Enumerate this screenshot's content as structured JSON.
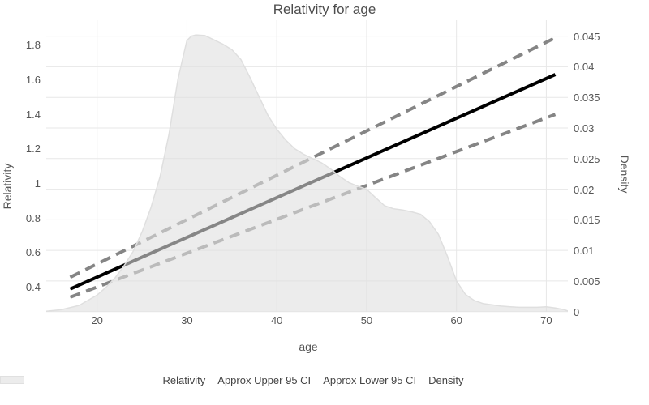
{
  "chart_data": {
    "type": "line",
    "title": "Relativity for age",
    "xlabel": "age",
    "ylabel_left": "Relativity",
    "ylabel_right": "Density",
    "grid": true,
    "legend_position": "bottom",
    "x_ticks": [
      "20",
      "30",
      "40",
      "50",
      "60",
      "70"
    ],
    "y_left_ticks": [
      "0.4",
      "0.6",
      "0.8",
      "1",
      "1.2",
      "1.4",
      "1.6",
      "1.8"
    ],
    "y_right_ticks": [
      "0",
      "0.005",
      "0.01",
      "0.015",
      "0.02",
      "0.025",
      "0.03",
      "0.035",
      "0.04",
      "0.045"
    ],
    "x_range": [
      14.34,
      72.4
    ],
    "y_left_range": [
      0.255,
      1.941
    ],
    "y_right_range": [
      0,
      0.0476
    ],
    "series": [
      {
        "name": "Relativity",
        "kind": "line",
        "style": "solid",
        "axis": "left",
        "color": "#000000",
        "width": 4,
        "points": [
          [
            17,
            0.387
          ],
          [
            71,
            1.627
          ]
        ]
      },
      {
        "name": "Approx Upper 95 CI",
        "kind": "line",
        "style": "dashed",
        "axis": "left",
        "color": "#858585",
        "width": 4,
        "points": [
          [
            17,
            0.455
          ],
          [
            71,
            1.84
          ]
        ]
      },
      {
        "name": "Approx Lower 95 CI",
        "kind": "line",
        "style": "dashed",
        "axis": "left",
        "color": "#858585",
        "width": 4,
        "points": [
          [
            17,
            0.34
          ],
          [
            71,
            1.397
          ]
        ]
      },
      {
        "name": "Density",
        "kind": "area",
        "axis": "right",
        "fill": "rgba(224,224,224,0.6)",
        "stroke": "#dfdfdf",
        "points": [
          [
            14.3,
            5e-05
          ],
          [
            16,
            0.0003
          ],
          [
            18,
            0.001
          ],
          [
            20,
            0.0027
          ],
          [
            21,
            0.004
          ],
          [
            22,
            0.0055
          ],
          [
            23,
            0.0075
          ],
          [
            24,
            0.0098
          ],
          [
            25,
            0.013
          ],
          [
            26,
            0.017
          ],
          [
            27,
            0.022
          ],
          [
            28,
            0.029
          ],
          [
            29,
            0.038
          ],
          [
            30,
            0.0443
          ],
          [
            30.5,
            0.045
          ],
          [
            31,
            0.0452
          ],
          [
            32,
            0.0451
          ],
          [
            33,
            0.0444
          ],
          [
            34,
            0.0437
          ],
          [
            35,
            0.0428
          ],
          [
            36,
            0.0412
          ],
          [
            37,
            0.0383
          ],
          [
            38,
            0.0352
          ],
          [
            39,
            0.0321
          ],
          [
            40,
            0.0298
          ],
          [
            41,
            0.028
          ],
          [
            42,
            0.0266
          ],
          [
            43,
            0.0257
          ],
          [
            44,
            0.025
          ],
          [
            45,
            0.0243
          ],
          [
            46,
            0.0233
          ],
          [
            47,
            0.0221
          ],
          [
            48,
            0.0211
          ],
          [
            49,
            0.0205
          ],
          [
            50,
            0.02
          ],
          [
            51,
            0.0186
          ],
          [
            52,
            0.0173
          ],
          [
            53,
            0.0168
          ],
          [
            54,
            0.0166
          ],
          [
            55,
            0.0163
          ],
          [
            56,
            0.0159
          ],
          [
            57,
            0.0147
          ],
          [
            58,
            0.0126
          ],
          [
            59,
            0.009
          ],
          [
            60,
            0.005
          ],
          [
            61,
            0.0028
          ],
          [
            62,
            0.0018
          ],
          [
            63,
            0.0013
          ],
          [
            64,
            0.0011
          ],
          [
            65,
            0.0009
          ],
          [
            66,
            0.0008
          ],
          [
            67,
            0.0007
          ],
          [
            68,
            0.0007
          ],
          [
            69,
            0.0007
          ],
          [
            70,
            0.0008
          ],
          [
            71,
            0.0006
          ],
          [
            72,
            0.0003
          ],
          [
            72.4,
            0.0001
          ]
        ]
      }
    ],
    "colors": {
      "background": "#ffffff",
      "gridline": "#e7e7e7",
      "tick_text": "#555555",
      "title_text": "#4d4d4d",
      "relativity_line": "#000000",
      "ci_line": "#858585",
      "density_fill": "#ececec"
    }
  }
}
